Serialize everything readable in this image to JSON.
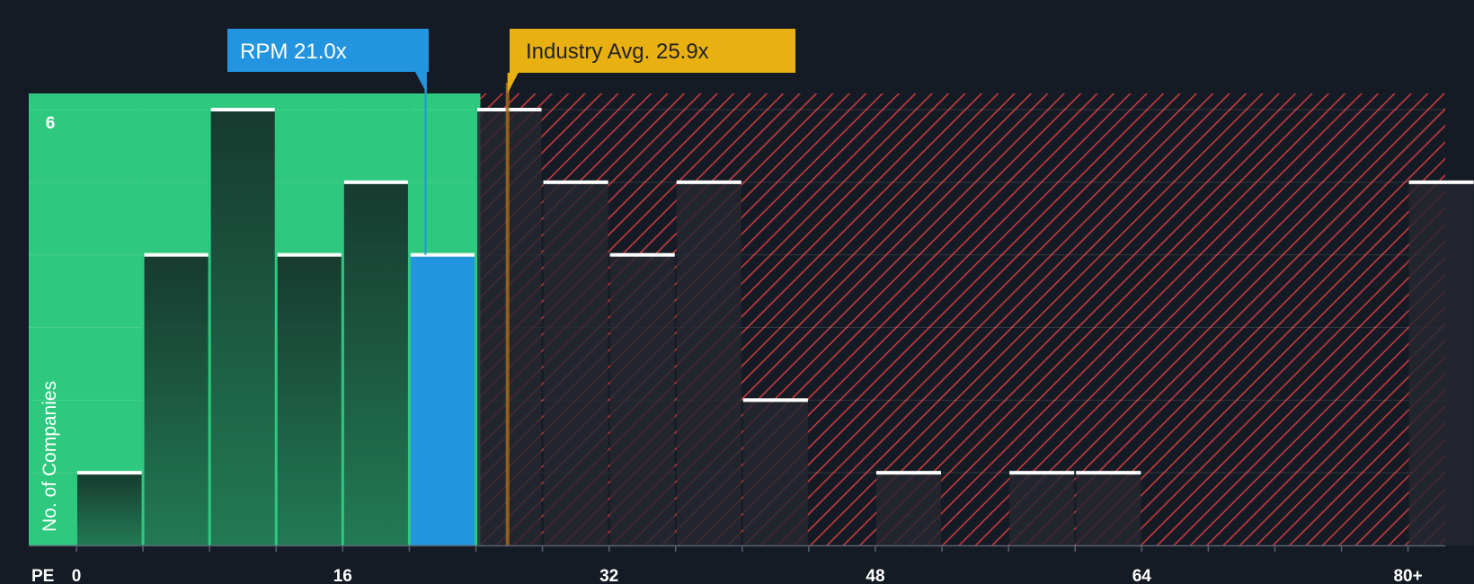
{
  "chart_data": {
    "type": "bar",
    "title": "",
    "xlabel": "PE",
    "ylabel": "No. of Companies",
    "x_tick_labels": [
      {
        "label": "0",
        "value": 0
      },
      {
        "label": "16",
        "value": 16
      },
      {
        "label": "32",
        "value": 32
      },
      {
        "label": "48",
        "value": 48
      },
      {
        "label": "64",
        "value": 64
      },
      {
        "label": "80+",
        "value": 80
      }
    ],
    "y_tick_labels": [
      {
        "label": "6",
        "value": 6
      }
    ],
    "xlim": [
      0,
      82
    ],
    "ylim": [
      0,
      6.2
    ],
    "bin_width": 4,
    "bins": [
      {
        "start": 0,
        "count": 1
      },
      {
        "start": 4,
        "count": 4
      },
      {
        "start": 8,
        "count": 6
      },
      {
        "start": 12,
        "count": 4
      },
      {
        "start": 16,
        "count": 5
      },
      {
        "start": 20,
        "count": 4,
        "highlight": true
      },
      {
        "start": 24,
        "count": 6
      },
      {
        "start": 28,
        "count": 5
      },
      {
        "start": 32,
        "count": 4
      },
      {
        "start": 36,
        "count": 5
      },
      {
        "start": 40,
        "count": 2
      },
      {
        "start": 48,
        "count": 1
      },
      {
        "start": 56,
        "count": 1
      },
      {
        "start": 60,
        "count": 1
      },
      {
        "start": 80,
        "count": 5
      }
    ],
    "company": {
      "label": "RPM 21.0x",
      "value": 21.0
    },
    "industry_avg": {
      "label": "Industry Avg. 25.9x",
      "value": 25.9
    },
    "colors": {
      "background": "#151b24",
      "fair_zone": "#2ec97f",
      "bar_dark": "#1f4a3a",
      "bar_highlight": "#2394e0",
      "bar_top": "#ffffff",
      "over_zone_stripe": "#c83a3e",
      "over_bar": "#262830",
      "company_callout": "#2394e0",
      "industry_callout": "#e9b012",
      "industry_text": "#222222",
      "axis_text": "#ffffff"
    }
  }
}
